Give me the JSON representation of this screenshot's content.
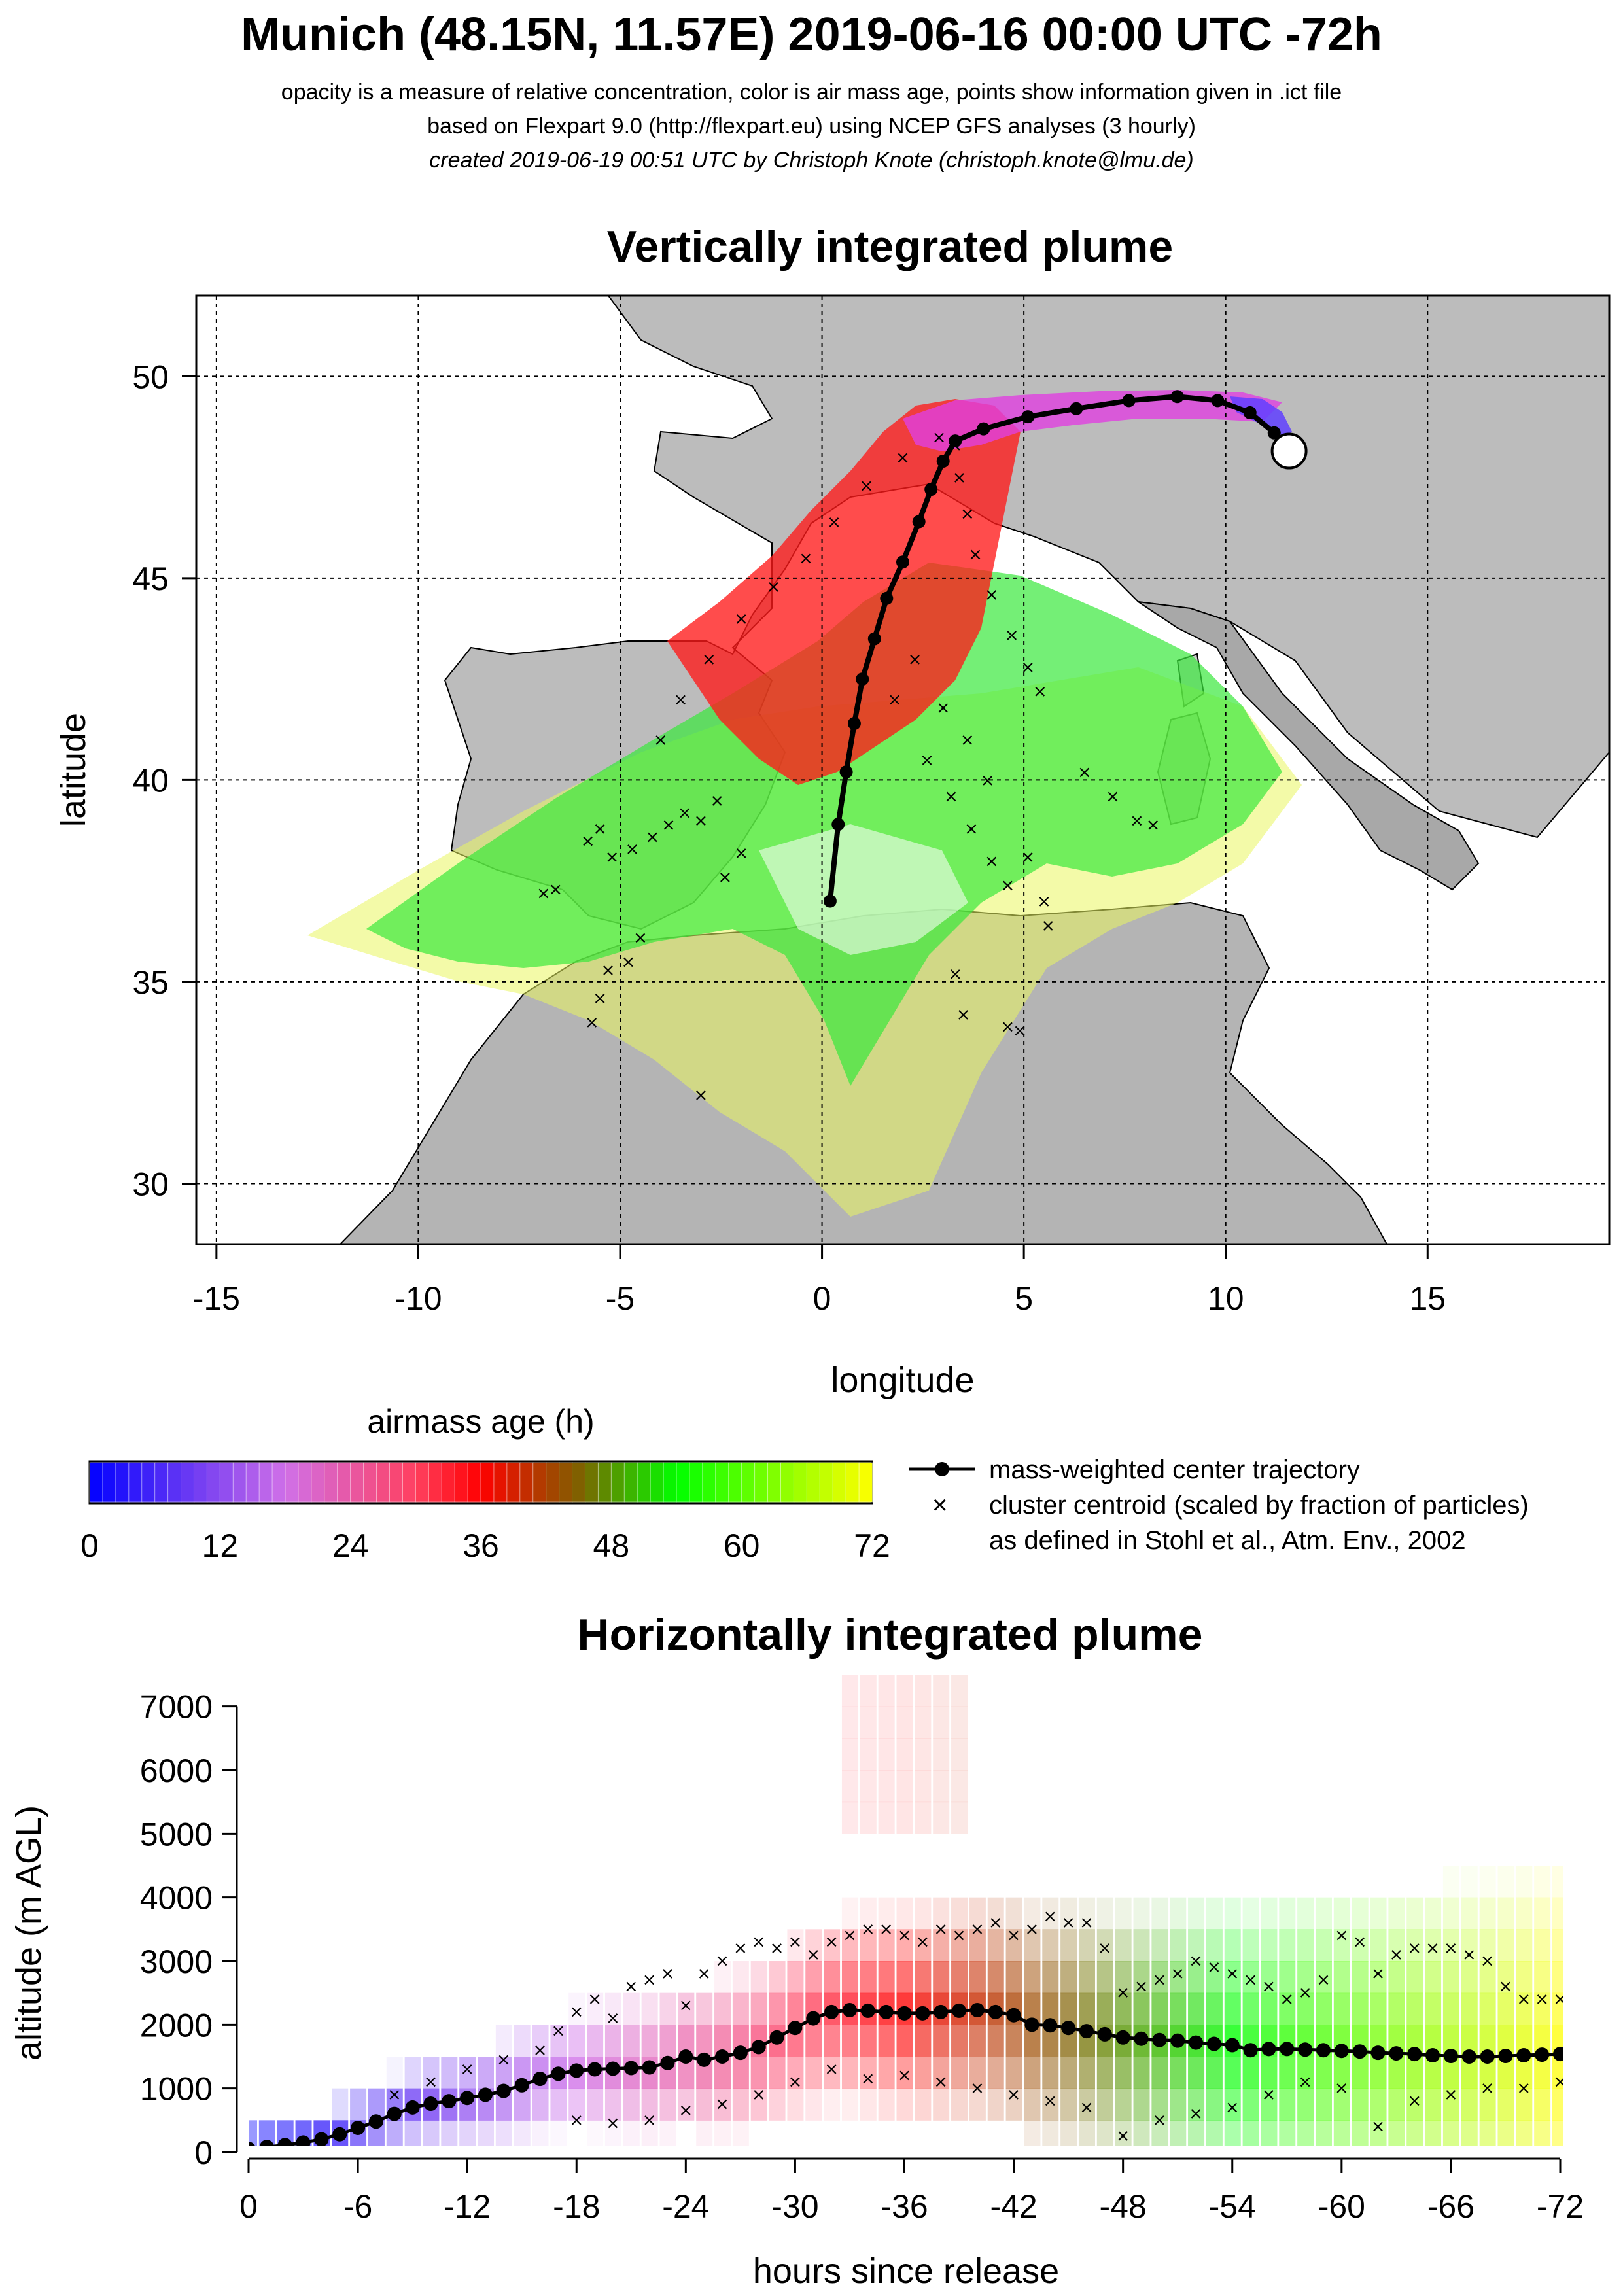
{
  "header": {
    "title": "Munich (48.15N, 11.57E) 2019-06-16 00:00 UTC -72h",
    "subtitle_1": "opacity is a measure of relative concentration, color is air mass age, points show information given in .ict file",
    "subtitle_2": "based on Flexpart 9.0 (http://flexpart.eu) using NCEP GFS analyses (3 hourly)",
    "subtitle_3": "created 2019-06-19 00:51 UTC by Christoph Knote (christoph.knote@lmu.de)"
  },
  "colors": {
    "age_scale": [
      "#0000ff",
      "#e080e0",
      "#ff0000",
      "#00ff00",
      "#ffff00"
    ],
    "land": "#b0b0b0",
    "trajectory": "#000000"
  },
  "chart_data": [
    {
      "type": "scatter",
      "title": "Vertically integrated plume",
      "xlabel": "longitude",
      "ylabel": "latitude",
      "xlim": [
        -15.5,
        19.5
      ],
      "ylim": [
        28.5,
        52
      ],
      "x_ticks": [
        "-15",
        "-10",
        "-5",
        "0",
        "5",
        "10",
        "15"
      ],
      "y_ticks": [
        "30",
        "35",
        "40",
        "45",
        "50"
      ],
      "grid": true,
      "release_point": {
        "lon": 11.57,
        "lat": 48.15
      },
      "series": [
        {
          "name": "mass-weighted center trajectory",
          "points": [
            [
              11.57,
              48.15
            ],
            [
              11.2,
              48.6
            ],
            [
              10.6,
              49.1
            ],
            [
              9.8,
              49.4
            ],
            [
              8.8,
              49.5
            ],
            [
              7.6,
              49.4
            ],
            [
              6.3,
              49.2
            ],
            [
              5.1,
              49.0
            ],
            [
              4.0,
              48.7
            ],
            [
              3.3,
              48.4
            ],
            [
              3.0,
              47.9
            ],
            [
              2.7,
              47.2
            ],
            [
              2.4,
              46.4
            ],
            [
              2.0,
              45.4
            ],
            [
              1.6,
              44.5
            ],
            [
              1.3,
              43.5
            ],
            [
              1.0,
              42.5
            ],
            [
              0.8,
              41.4
            ],
            [
              0.6,
              40.2
            ],
            [
              0.4,
              38.9
            ],
            [
              0.2,
              37.0
            ]
          ]
        },
        {
          "name": "cluster centroid (scaled by fraction of particles)",
          "points": [
            [
              -6.9,
              37.2
            ],
            [
              -6.6,
              37.3
            ],
            [
              -5.8,
              38.5
            ],
            [
              -5.5,
              38.8
            ],
            [
              -5.2,
              38.1
            ],
            [
              -4.7,
              38.3
            ],
            [
              -4.2,
              38.6
            ],
            [
              -3.8,
              38.9
            ],
            [
              -3.4,
              39.2
            ],
            [
              -3.0,
              39.0
            ],
            [
              -2.6,
              39.5
            ],
            [
              -2.4,
              37.6
            ],
            [
              -2.0,
              38.2
            ],
            [
              -5.7,
              34.0
            ],
            [
              -5.5,
              34.6
            ],
            [
              -5.3,
              35.3
            ],
            [
              -4.8,
              35.5
            ],
            [
              -4.5,
              36.1
            ],
            [
              -3.0,
              32.2
            ],
            [
              -4.0,
              41.0
            ],
            [
              -3.5,
              42.0
            ],
            [
              -2.8,
              43.0
            ],
            [
              -2.0,
              44.0
            ],
            [
              -1.2,
              44.8
            ],
            [
              -0.4,
              45.5
            ],
            [
              0.3,
              46.4
            ],
            [
              1.1,
              47.3
            ],
            [
              2.0,
              48.0
            ],
            [
              2.9,
              48.5
            ],
            [
              3.3,
              48.3
            ],
            [
              3.4,
              47.5
            ],
            [
              3.6,
              46.6
            ],
            [
              3.8,
              45.6
            ],
            [
              4.2,
              44.6
            ],
            [
              4.7,
              43.6
            ],
            [
              5.1,
              42.8
            ],
            [
              5.4,
              42.2
            ],
            [
              2.6,
              40.5
            ],
            [
              3.2,
              39.6
            ],
            [
              3.7,
              38.8
            ],
            [
              4.2,
              38.0
            ],
            [
              4.6,
              37.4
            ],
            [
              5.1,
              38.1
            ],
            [
              5.5,
              37.0
            ],
            [
              5.6,
              36.4
            ],
            [
              3.3,
              35.2
            ],
            [
              3.5,
              34.2
            ],
            [
              4.6,
              33.9
            ],
            [
              4.9,
              33.8
            ],
            [
              6.5,
              40.2
            ],
            [
              7.2,
              39.6
            ],
            [
              7.8,
              39.0
            ],
            [
              8.2,
              38.9
            ],
            [
              3.0,
              41.8
            ],
            [
              3.6,
              41.0
            ],
            [
              4.1,
              40.0
            ],
            [
              1.8,
              42.0
            ],
            [
              2.3,
              43.0
            ]
          ]
        }
      ],
      "colorbar": {
        "title": "airmass age (h)",
        "ticks": [
          "0",
          "12",
          "24",
          "36",
          "48",
          "60",
          "72"
        ],
        "range": [
          0,
          72
        ]
      },
      "legend": {
        "position": "right of colorbar",
        "line_label": "mass-weighted center trajectory",
        "cross_label": "cluster centroid (scaled by fraction of particles)",
        "cross_label_2": "as defined in Stohl et al., Atm. Env., 2002"
      }
    },
    {
      "type": "scatter",
      "title": "Horizontally integrated plume",
      "xlabel": "hours since release",
      "ylabel": "altitude (m AGL)",
      "xlim": [
        0,
        -72
      ],
      "ylim": [
        0,
        7500
      ],
      "x_ticks": [
        "0",
        "-6",
        "-12",
        "-18",
        "-24",
        "-30",
        "-36",
        "-42",
        "-48",
        "-54",
        "-60",
        "-66",
        "-72"
      ],
      "y_ticks": [
        "0",
        "1000",
        "2000",
        "3000",
        "4000",
        "5000",
        "6000",
        "7000"
      ],
      "series": [
        {
          "name": "mass-weighted center trajectory",
          "x": [
            0,
            -1,
            -2,
            -3,
            -4,
            -5,
            -6,
            -7,
            -8,
            -9,
            -10,
            -11,
            -12,
            -13,
            -14,
            -15,
            -16,
            -17,
            -18,
            -19,
            -20,
            -21,
            -22,
            -23,
            -24,
            -25,
            -26,
            -27,
            -28,
            -29,
            -30,
            -31,
            -32,
            -33,
            -34,
            -35,
            -36,
            -37,
            -38,
            -39,
            -40,
            -41,
            -42,
            -43,
            -44,
            -45,
            -46,
            -47,
            -48,
            -49,
            -50,
            -51,
            -52,
            -53,
            -54,
            -55,
            -56,
            -57,
            -58,
            -59,
            -60,
            -61,
            -62,
            -63,
            -64,
            -65,
            -66,
            -67,
            -68,
            -69,
            -70,
            -71,
            -72
          ],
          "y": [
            50,
            80,
            110,
            150,
            200,
            280,
            380,
            480,
            600,
            700,
            760,
            800,
            850,
            900,
            960,
            1050,
            1150,
            1230,
            1280,
            1300,
            1310,
            1320,
            1330,
            1400,
            1500,
            1450,
            1500,
            1560,
            1650,
            1800,
            1950,
            2100,
            2200,
            2230,
            2220,
            2200,
            2180,
            2180,
            2200,
            2220,
            2230,
            2200,
            2150,
            2000,
            1990,
            1950,
            1900,
            1850,
            1800,
            1780,
            1760,
            1750,
            1720,
            1700,
            1680,
            1600,
            1620,
            1620,
            1610,
            1600,
            1590,
            1580,
            1560,
            1550,
            1540,
            1520,
            1510,
            1500,
            1500,
            1510,
            1520,
            1530,
            1540
          ]
        },
        {
          "name": "cluster centroid (scaled by fraction of particles)",
          "points": [
            [
              -8,
              900
            ],
            [
              -10,
              1100
            ],
            [
              -12,
              1300
            ],
            [
              -14,
              1450
            ],
            [
              -16,
              1600
            ],
            [
              -17,
              1900
            ],
            [
              -18,
              2200
            ],
            [
              -19,
              2400
            ],
            [
              -20,
              2100
            ],
            [
              -21,
              2600
            ],
            [
              -22,
              2700
            ],
            [
              -23,
              2800
            ],
            [
              -24,
              2300
            ],
            [
              -25,
              2800
            ],
            [
              -26,
              3000
            ],
            [
              -27,
              3200
            ],
            [
              -28,
              3300
            ],
            [
              -29,
              3200
            ],
            [
              -30,
              3300
            ],
            [
              -31,
              3100
            ],
            [
              -32,
              3300
            ],
            [
              -33,
              3400
            ],
            [
              -34,
              3500
            ],
            [
              -35,
              3500
            ],
            [
              -36,
              3400
            ],
            [
              -37,
              3300
            ],
            [
              -38,
              3500
            ],
            [
              -39,
              3400
            ],
            [
              -40,
              3500
            ],
            [
              -41,
              3600
            ],
            [
              -42,
              3400
            ],
            [
              -43,
              3500
            ],
            [
              -44,
              3700
            ],
            [
              -45,
              3600
            ],
            [
              -46,
              3600
            ],
            [
              -47,
              3200
            ],
            [
              -48,
              2500
            ],
            [
              -49,
              2600
            ],
            [
              -50,
              2700
            ],
            [
              -51,
              2800
            ],
            [
              -52,
              3000
            ],
            [
              -53,
              2900
            ],
            [
              -54,
              2800
            ],
            [
              -55,
              2700
            ],
            [
              -56,
              2600
            ],
            [
              -57,
              2400
            ],
            [
              -58,
              2500
            ],
            [
              -59,
              2700
            ],
            [
              -60,
              3400
            ],
            [
              -61,
              3300
            ],
            [
              -62,
              2800
            ],
            [
              -63,
              3100
            ],
            [
              -64,
              3200
            ],
            [
              -65,
              3200
            ],
            [
              -66,
              3200
            ],
            [
              -67,
              3100
            ],
            [
              -68,
              3000
            ],
            [
              -69,
              2600
            ],
            [
              -70,
              2400
            ],
            [
              -71,
              2400
            ],
            [
              -72,
              2400
            ],
            [
              -18,
              500
            ],
            [
              -20,
              450
            ],
            [
              -22,
              500
            ],
            [
              -24,
              650
            ],
            [
              -26,
              750
            ],
            [
              -28,
              900
            ],
            [
              -30,
              1100
            ],
            [
              -32,
              1300
            ],
            [
              -34,
              1150
            ],
            [
              -36,
              1200
            ],
            [
              -38,
              1100
            ],
            [
              -40,
              1000
            ],
            [
              -42,
              900
            ],
            [
              -44,
              800
            ],
            [
              -46,
              700
            ],
            [
              -48,
              250
            ],
            [
              -50,
              500
            ],
            [
              -52,
              600
            ],
            [
              -54,
              700
            ],
            [
              -56,
              900
            ],
            [
              -58,
              1100
            ],
            [
              -60,
              1000
            ],
            [
              -62,
              400
            ],
            [
              -64,
              800
            ],
            [
              -66,
              900
            ],
            [
              -68,
              1000
            ],
            [
              -70,
              1000
            ],
            [
              -72,
              1100
            ]
          ]
        }
      ]
    }
  ]
}
